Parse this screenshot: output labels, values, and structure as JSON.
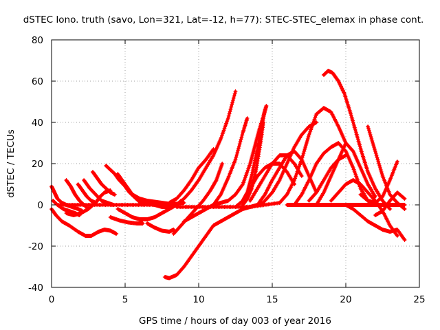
{
  "chart_data": {
    "type": "scatter",
    "title": "dSTEC Iono. truth (savo, Lon=321, Lat=-12, h=77): STEC-STEC_elemax in phase cont.",
    "xlabel": "GPS time / hours of day 003 of year 2016",
    "ylabel": "dSTEC  / TECUs",
    "xlim": [
      0,
      25
    ],
    "ylim": [
      -40,
      80
    ],
    "xticks": [
      "0",
      "5",
      "10",
      "15",
      "20",
      "25"
    ],
    "yticks": [
      "-40",
      "-20",
      "0",
      "20",
      "40",
      "60",
      "80"
    ],
    "grid": true,
    "marker": "plus",
    "color": "#ff0000",
    "series": [
      {
        "x": [
          0.0,
          0.3,
          0.7,
          1.2,
          1.8,
          2.3,
          2.7,
          3.2,
          3.6,
          4.0,
          4.4
        ],
        "y": [
          -2,
          -5,
          -8,
          -10,
          -13,
          -15,
          -15,
          -13,
          -12,
          -12.5,
          -14
        ]
      },
      {
        "x": [
          0.0,
          0.2,
          0.4,
          0.7,
          1.0,
          1.4,
          1.8,
          2.1
        ],
        "y": [
          9,
          6,
          3,
          1,
          0,
          -1,
          -2,
          -3
        ]
      },
      {
        "x": [
          0.1,
          0.4,
          0.8,
          1.2,
          1.6,
          1.9
        ],
        "y": [
          2,
          0,
          -2,
          -3,
          -4,
          -5
        ]
      },
      {
        "x": [
          1.0,
          1.3,
          1.6,
          1.9,
          2.2,
          2.5
        ],
        "y": [
          12,
          9,
          5,
          2,
          0,
          -2
        ]
      },
      {
        "x": [
          1.8,
          2.1,
          2.4,
          2.7,
          3.0
        ],
        "y": [
          10,
          7,
          4,
          2,
          1
        ]
      },
      {
        "x": [
          2.2,
          2.6,
          3.0,
          3.4,
          3.8,
          4.2
        ],
        "y": [
          12,
          8,
          5,
          2,
          1,
          0
        ]
      },
      {
        "x": [
          2.8,
          3.1,
          3.4,
          3.7,
          4.0,
          4.3
        ],
        "y": [
          16,
          13,
          10,
          8,
          6,
          5
        ]
      },
      {
        "x": [
          3.7,
          4.0,
          4.3,
          4.6,
          5.0,
          5.3,
          5.6,
          5.9,
          6.1
        ],
        "y": [
          19,
          17,
          15,
          12,
          9,
          6,
          4,
          2,
          1
        ]
      },
      {
        "x": [
          1.0,
          1.5,
          2.0,
          2.5,
          3.0,
          3.3,
          3.6,
          4.0
        ],
        "y": [
          -4,
          -5,
          -4,
          -2,
          1,
          4,
          6,
          7
        ]
      },
      {
        "x": [
          0.5,
          1.5,
          2.5,
          3.5,
          4.5,
          5.5,
          6.5,
          7.5,
          8.5
        ],
        "y": [
          0,
          0,
          0,
          0,
          0,
          0,
          0,
          0,
          0
        ]
      },
      {
        "x": [
          4.5,
          5.0,
          5.5,
          6.0,
          6.5,
          7.0,
          7.5,
          8.0,
          8.5,
          9.0
        ],
        "y": [
          15,
          10,
          5,
          3,
          2,
          1.5,
          1,
          0.5,
          0.5,
          1
        ]
      },
      {
        "x": [
          4.5,
          5.0,
          5.5,
          6.0,
          6.5,
          7.0,
          7.5,
          8.0,
          8.4
        ],
        "y": [
          -2,
          -4,
          -6,
          -7,
          -7,
          -6,
          -4,
          -2,
          0
        ]
      },
      {
        "x": [
          6.0,
          6.5,
          7.0,
          7.5,
          8.0,
          8.5,
          8.8
        ],
        "y": [
          2,
          1,
          0,
          -1,
          -1,
          0,
          2
        ]
      },
      {
        "x": [
          4.0,
          4.6,
          5.2,
          5.8,
          6.2
        ],
        "y": [
          -6,
          -7.5,
          -8.5,
          -9,
          -9
        ]
      },
      {
        "x": [
          6.5,
          7.0,
          7.5,
          8.0,
          8.3
        ],
        "y": [
          -9,
          -11,
          -12.5,
          -13,
          -12
        ]
      },
      {
        "x": [
          7.7,
          8.0,
          8.5,
          9.0,
          9.5,
          10.0,
          10.5,
          11.0,
          11.5,
          12.0,
          12.5,
          13.0,
          13.5,
          14.0,
          14.4
        ],
        "y": [
          -35,
          -35.5,
          -34,
          -30,
          -25,
          -20,
          -15,
          -10,
          -8,
          -6,
          -4,
          -2,
          -1,
          0,
          1
        ]
      },
      {
        "x": [
          8.0,
          8.5,
          9.0,
          9.5,
          10.0,
          10.5,
          11.0,
          11.5,
          12.0,
          12.5
        ],
        "y": [
          -2,
          0,
          3,
          7,
          12,
          18,
          24,
          32,
          42,
          55
        ]
      },
      {
        "x": [
          8.0,
          8.5,
          9.0,
          9.5,
          10.0,
          10.5,
          11.0
        ],
        "y": [
          1,
          3,
          7,
          12,
          18,
          22,
          27
        ]
      },
      {
        "x": [
          8.3,
          8.8,
          9.3,
          9.8,
          10.3,
          10.8,
          11.2,
          11.6
        ],
        "y": [
          -14,
          -10,
          -6,
          -2,
          2,
          7,
          12,
          20
        ]
      },
      {
        "x": [
          9.0,
          9.5,
          10.0,
          10.5,
          11.0,
          11.5,
          12.0,
          12.5,
          13.0,
          13.3
        ],
        "y": [
          -8,
          -6,
          -4,
          -2,
          0,
          5,
          13,
          22,
          35,
          42
        ]
      },
      {
        "x": [
          8.5,
          9.5,
          10.5,
          11.5,
          12.5,
          13.5,
          14.5,
          15.5
        ],
        "y": [
          -1,
          -1,
          -1,
          -1,
          -1,
          -1,
          0,
          1
        ]
      },
      {
        "x": [
          11.0,
          11.5,
          12.0,
          12.5,
          13.0,
          13.5,
          13.8,
          14.1,
          14.4,
          14.6
        ],
        "y": [
          0,
          1,
          2,
          5,
          10,
          20,
          28,
          36,
          43,
          48
        ]
      },
      {
        "x": [
          12.5,
          13.0,
          13.3,
          13.6,
          13.9,
          14.2,
          14.5
        ],
        "y": [
          -1,
          2,
          6,
          14,
          24,
          34,
          46
        ]
      },
      {
        "x": [
          13.0,
          13.3,
          13.6,
          13.9,
          14.2,
          14.4
        ],
        "y": [
          0,
          3,
          8,
          17,
          30,
          40
        ]
      },
      {
        "x": [
          13.0,
          13.5,
          14.0,
          14.5,
          15.0,
          15.5,
          16.0,
          16.5
        ],
        "y": [
          2,
          8,
          14,
          18,
          20,
          20,
          16,
          10
        ]
      },
      {
        "x": [
          13.5,
          14.0,
          14.5,
          15.0,
          15.5,
          16.0,
          16.5,
          17.0
        ],
        "y": [
          2,
          8,
          14,
          20,
          24,
          24,
          20,
          14
        ]
      },
      {
        "x": [
          14.0,
          14.5,
          15.0,
          15.5,
          16.0,
          16.5,
          17.0,
          17.5,
          18.0
        ],
        "y": [
          0,
          5,
          12,
          18,
          24,
          26,
          22,
          14,
          6
        ]
      },
      {
        "x": [
          14.5,
          15.0,
          15.5,
          16.0,
          16.5,
          17.0,
          17.5,
          18.0
        ],
        "y": [
          2,
          6,
          12,
          20,
          28,
          34,
          38,
          40
        ]
      },
      {
        "x": [
          15.5,
          16.0,
          16.5,
          17.0,
          17.5,
          18.0,
          18.5,
          19.0,
          19.5,
          20.0
        ],
        "y": [
          1,
          5,
          12,
          22,
          34,
          44,
          47,
          45,
          38,
          30
        ]
      },
      {
        "x": [
          16.0,
          16.5,
          17.0,
          17.5,
          18.0,
          18.5,
          19.0,
          19.5,
          20.0,
          20.5,
          21.0,
          21.5,
          22.0,
          22.5,
          23.0,
          23.5,
          24.0
        ],
        "y": [
          0,
          0,
          0,
          0,
          0,
          0,
          0,
          0,
          0,
          0,
          0,
          0,
          0,
          0,
          0,
          0,
          0
        ]
      },
      {
        "x": [
          16.5,
          17.0,
          17.5,
          18.0,
          18.5,
          19.0,
          19.5,
          20.0,
          20.5,
          21.0,
          21.5
        ],
        "y": [
          0,
          5,
          12,
          20,
          25,
          28,
          30,
          26,
          18,
          8,
          2
        ]
      },
      {
        "x": [
          17.5,
          18.0,
          18.5,
          19.0,
          19.5,
          20.0
        ],
        "y": [
          2,
          6,
          12,
          18,
          22,
          24
        ]
      },
      {
        "x": [
          18.0,
          18.5,
          19.0,
          19.5,
          20.0,
          20.5,
          21.0,
          21.5,
          22.0
        ],
        "y": [
          0,
          6,
          14,
          22,
          30,
          26,
          18,
          10,
          4
        ]
      },
      {
        "x": [
          18.5,
          18.8,
          19.1,
          19.5,
          19.9,
          20.3,
          20.7,
          21.1,
          21.5,
          22.0,
          22.5,
          23.0
        ],
        "y": [
          63,
          65,
          64,
          60,
          54,
          45,
          35,
          25,
          16,
          8,
          2,
          -2
        ]
      },
      {
        "x": [
          19.0,
          19.5,
          20.0,
          20.5,
          21.0,
          21.5,
          22.0,
          22.5,
          23.0,
          23.5
        ],
        "y": [
          2,
          6,
          10,
          12,
          10,
          6,
          2,
          -3,
          -10,
          -15
        ]
      },
      {
        "x": [
          20.0,
          20.5,
          21.0,
          21.5,
          22.0,
          22.5,
          23.0,
          23.5,
          24.0
        ],
        "y": [
          0,
          -2,
          -5,
          -8,
          -10,
          -12,
          -13,
          -12,
          -17
        ]
      },
      {
        "x": [
          21.5,
          22.0,
          22.5,
          23.0,
          23.5,
          24.0
        ],
        "y": [
          38,
          26,
          14,
          5,
          1,
          -2
        ]
      },
      {
        "x": [
          21.0,
          21.5,
          22.0,
          22.5,
          23.0,
          23.5
        ],
        "y": [
          5,
          2,
          1,
          4,
          12,
          21
        ]
      },
      {
        "x": [
          22.0,
          22.5,
          23.0,
          23.5,
          24.0
        ],
        "y": [
          -5,
          -3,
          2,
          6,
          3
        ]
      }
    ]
  }
}
